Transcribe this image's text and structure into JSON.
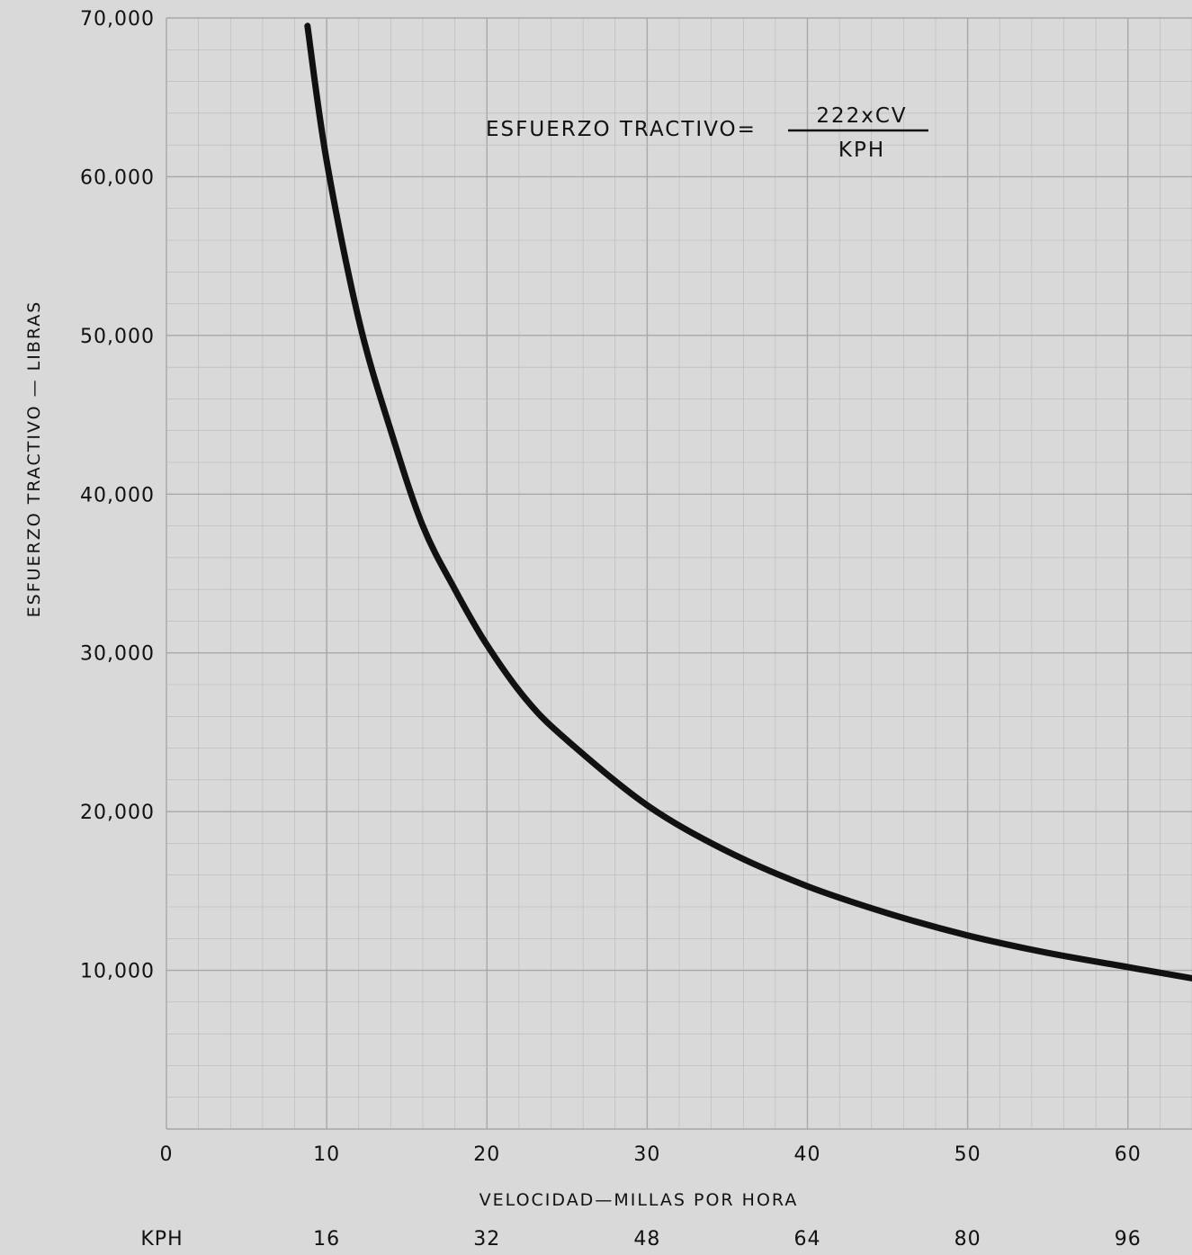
{
  "chart_data": {
    "type": "line",
    "title": "",
    "xlabel": "VELOCIDAD—MILLAS POR HORA",
    "ylabel": "ESFUERZO TRACTIVO — LIBRAS",
    "xlim": [
      0,
      64
    ],
    "ylim": [
      0,
      70000
    ],
    "x_ticks": [
      0,
      10,
      20,
      30,
      40,
      50,
      60
    ],
    "x_tick_labels": [
      "0",
      "10",
      "20",
      "30",
      "40",
      "50",
      "60"
    ],
    "y_ticks": [
      10000,
      20000,
      30000,
      40000,
      50000,
      60000,
      70000
    ],
    "y_tick_labels": [
      "10,000",
      "20,000",
      "30,000",
      "40,000",
      "50,000",
      "60,000",
      "70,000"
    ],
    "secondary_x_axis": {
      "label": "KPH",
      "ticks": [
        10,
        20,
        30,
        40,
        50,
        60
      ],
      "tick_labels": [
        "16",
        "32",
        "48",
        "64",
        "80",
        "96"
      ]
    },
    "annotation": {
      "prefix": "ESFUERZO TRACTIVO=",
      "numerator": "222xCV",
      "denominator": "KPH"
    },
    "grid": true,
    "series": [
      {
        "name": "",
        "x": [
          8.8,
          10,
          12,
          14,
          16,
          18,
          20,
          22.5,
          25,
          30,
          35,
          40,
          45,
          50,
          55,
          60,
          64
        ],
        "y": [
          69500,
          61000,
          51000,
          44000,
          38000,
          34000,
          30500,
          27000,
          24500,
          20400,
          17500,
          15300,
          13600,
          12200,
          11100,
          10200,
          9500
        ]
      }
    ],
    "colors": {
      "line": "#111111",
      "background": "#d9d9d9",
      "grid": "#b8b8b8"
    }
  }
}
